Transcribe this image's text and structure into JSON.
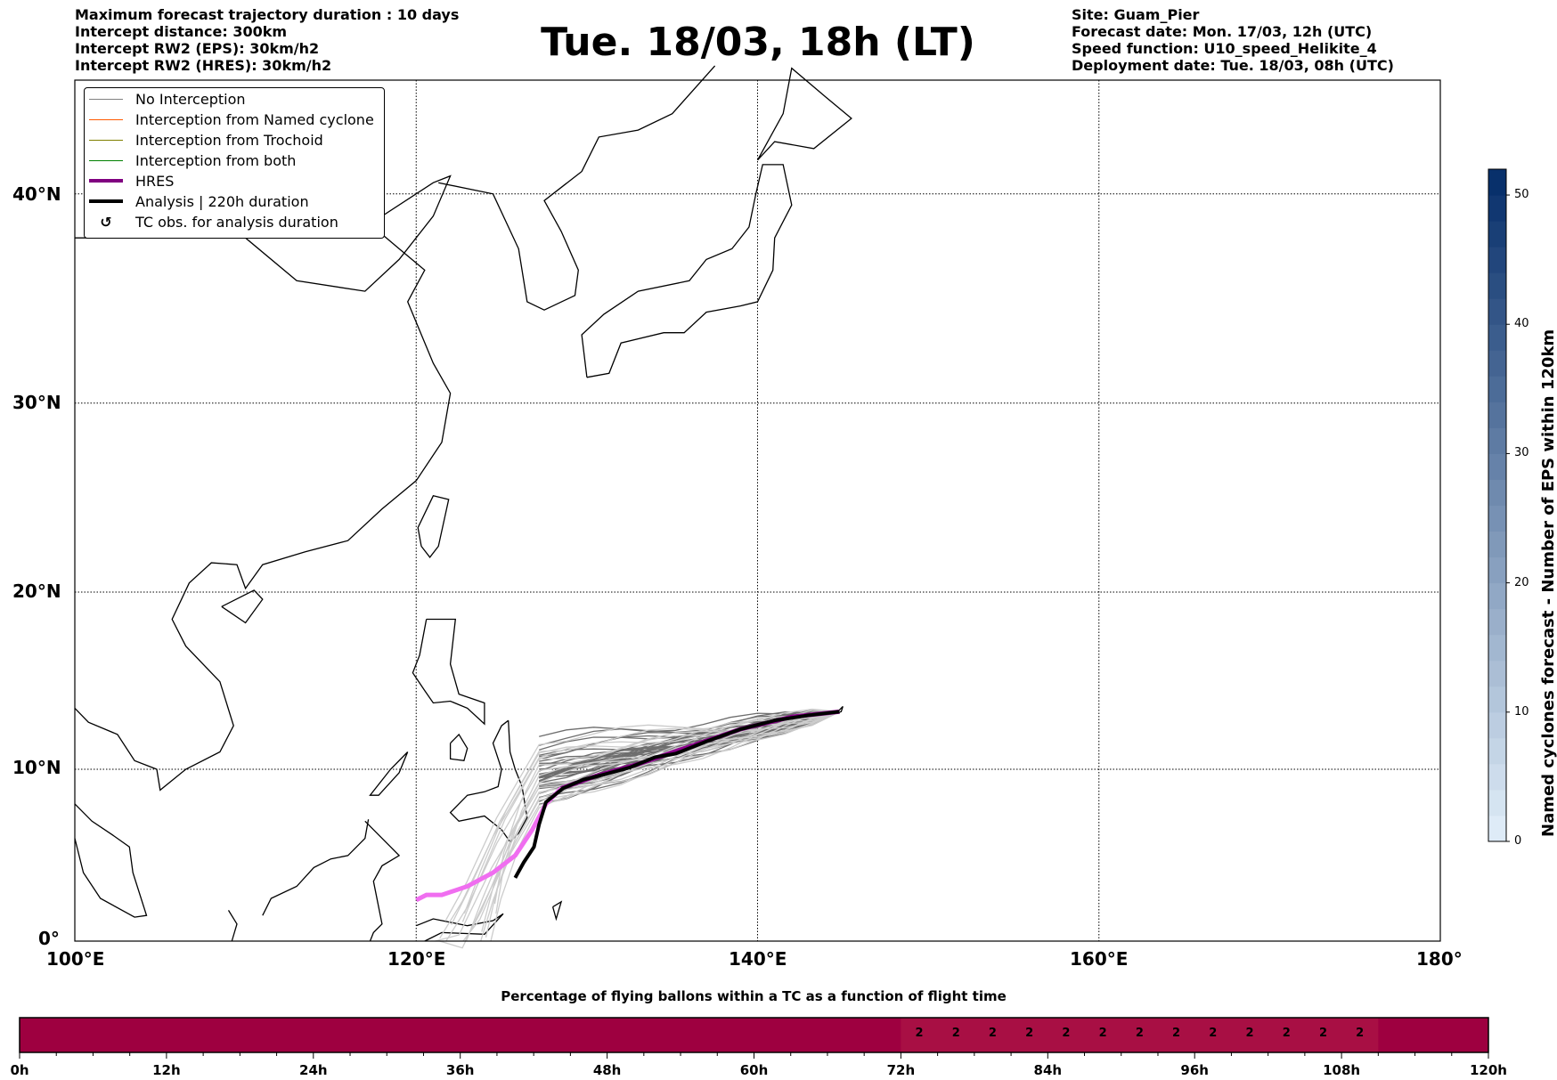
{
  "header_left": [
    "Maximum forecast trajectory duration : 10 days",
    "Intercept distance: 300km",
    "Intercept RW2 (EPS):  30km/h2",
    "Intercept RW2 (HRES): 30km/h2"
  ],
  "title": "Tue. 18/03, 18h (LT)",
  "header_right": [
    "Site: Guam_Pier",
    "Forecast date: Mon. 17/03, 12h (UTC)",
    "Speed function: U10_speed_Helikite_4",
    "Deployment date: Tue. 18/03, 08h (UTC)"
  ],
  "legend": [
    {
      "label": "No Interception",
      "color": "#808080"
    },
    {
      "label": "Interception from Named cyclone",
      "color": "#ff5a00"
    },
    {
      "label": "Interception from Trochoid",
      "color": "#808000"
    },
    {
      "label": "Interception from both",
      "color": "#008000"
    },
    {
      "label": "HRES",
      "color": "#800080"
    },
    {
      "label": "Analysis | 220h duration",
      "color": "#000000"
    },
    {
      "label": "TC obs. for analysis duration",
      "icon": "↺"
    }
  ],
  "lon_labels": [
    "100°E",
    "120°E",
    "140°E",
    "160°E",
    "180°"
  ],
  "lat_labels": [
    "0°",
    "10°N",
    "20°N",
    "30°N",
    "40°N"
  ],
  "colorbar": {
    "label": "Named cyclones forecast - Number of EPS within 120km",
    "ticks": [
      "0",
      "10",
      "20",
      "30",
      "40",
      "50"
    ],
    "max": 52
  },
  "timebar": {
    "title": "Percentage of flying ballons within a TC as a function of flight time",
    "ticks": [
      "0h",
      "12h",
      "24h",
      "36h",
      "48h",
      "60h",
      "72h",
      "84h",
      "96h",
      "108h",
      "120h"
    ],
    "highlight_range_h": [
      72,
      111
    ],
    "values": [
      "2",
      "2",
      "2",
      "2",
      "2",
      "2",
      "2",
      "2",
      "2",
      "2",
      "2",
      "2",
      "2"
    ],
    "base_color": "#9e0040",
    "highlight_color": "#a80f44"
  }
}
